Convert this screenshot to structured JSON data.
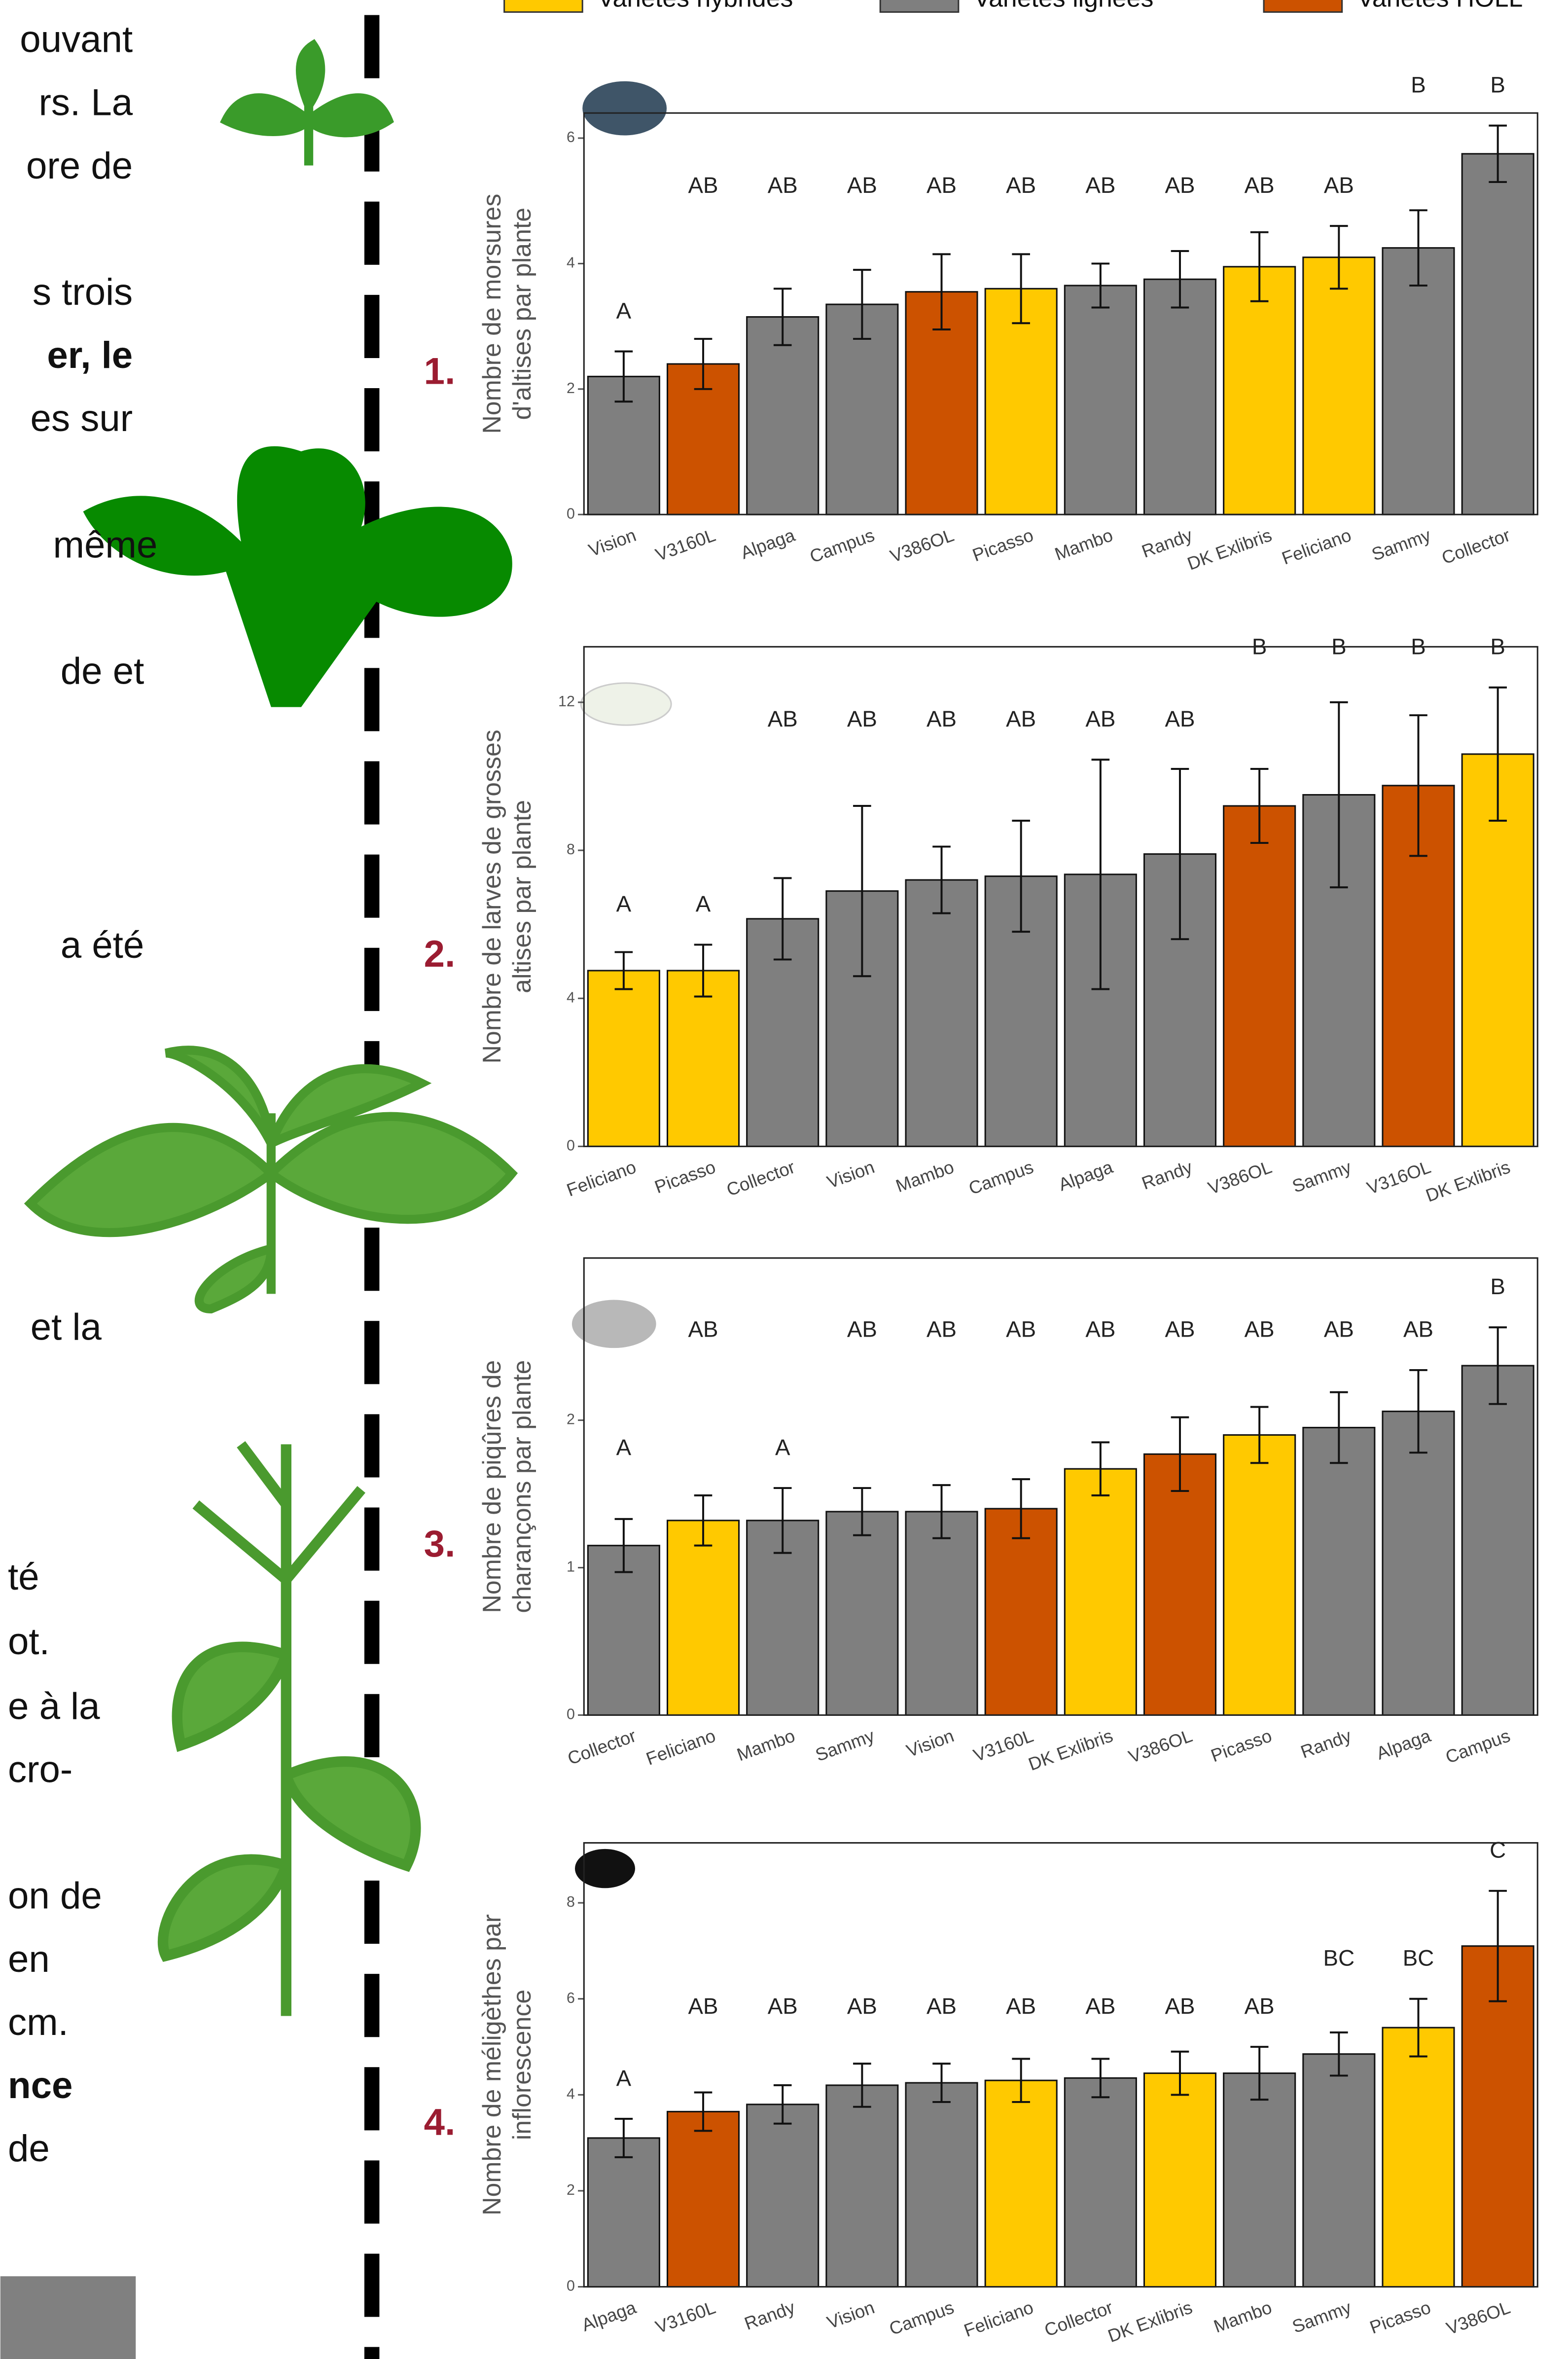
{
  "legend": [
    "Variétés hybrides",
    "Variétés lignées",
    "Variétés HOLL"
  ],
  "side_text": [
    "ouvant",
    "rs. La",
    "ore de",
    "s trois",
    "er, le",
    "es sur",
    "même",
    "de et",
    "a été",
    "et la",
    "té",
    "ot.",
    "e à la",
    "cro-",
    "on de",
    "en",
    "cm.",
    "nce",
    "de"
  ],
  "chart_data": [
    {
      "type": "bar",
      "number": "1.",
      "ylabel": [
        "Nombre de morsures",
        "d'altises par plante"
      ],
      "categories": [
        "Vision",
        "V3160L",
        "Alpaga",
        "Campus",
        "V386OL",
        "Picasso",
        "Mambo",
        "Randy",
        "DK Exlibris",
        "Feliciano",
        "Sammy",
        "Collector"
      ],
      "values": [
        2.2,
        2.4,
        3.15,
        3.35,
        3.55,
        3.6,
        3.65,
        3.75,
        3.95,
        4.1,
        4.25,
        5.75
      ],
      "errors": [
        0.4,
        0.4,
        0.45,
        0.55,
        0.6,
        0.55,
        0.35,
        0.45,
        0.55,
        0.5,
        0.6,
        0.45
      ],
      "colors": [
        "#7f7f7f",
        "#cc5200",
        "#7f7f7f",
        "#7f7f7f",
        "#cc5200",
        "#ffc900",
        "#7f7f7f",
        "#7f7f7f",
        "#ffc900",
        "#ffc900",
        "#7f7f7f",
        "#7f7f7f"
      ],
      "letters": [
        "A",
        "AB",
        "AB",
        "AB",
        "AB",
        "AB",
        "AB",
        "AB",
        "AB",
        "AB",
        "B",
        "B"
      ],
      "ylim": [
        0,
        6.4
      ],
      "yticks": [
        0,
        2,
        4,
        6
      ]
    },
    {
      "type": "bar",
      "number": "2.",
      "ylabel": [
        "Nombre de larves de grosses",
        "altises par plante"
      ],
      "categories": [
        "Feliciano",
        "Picasso",
        "Collector",
        "Vision",
        "Mambo",
        "Campus",
        "Alpaga",
        "Randy",
        "V386OL",
        "Sammy",
        "V316OL",
        "DK Exlibris"
      ],
      "values": [
        4.75,
        4.75,
        6.15,
        6.9,
        7.2,
        7.3,
        7.35,
        7.9,
        9.2,
        9.5,
        9.75,
        10.6
      ],
      "errors": [
        0.5,
        0.7,
        1.1,
        2.3,
        0.9,
        1.5,
        3.1,
        2.3,
        1.0,
        2.5,
        1.9,
        1.8
      ],
      "colors": [
        "#ffc900",
        "#ffc900",
        "#7f7f7f",
        "#7f7f7f",
        "#7f7f7f",
        "#7f7f7f",
        "#7f7f7f",
        "#7f7f7f",
        "#cc5200",
        "#7f7f7f",
        "#cc5200",
        "#ffc900"
      ],
      "letters": [
        "A",
        "A",
        "AB",
        "AB",
        "AB",
        "AB",
        "AB",
        "AB",
        "B",
        "B",
        "B",
        "B"
      ],
      "ylim": [
        0,
        13.5
      ],
      "yticks": [
        0,
        4,
        8,
        12
      ]
    },
    {
      "type": "bar",
      "number": "3.",
      "ylabel": [
        "Nombre de piqûres de",
        "charançons par plante"
      ],
      "categories": [
        "Collector",
        "Feliciano",
        "Mambo",
        "Sammy",
        "Vision",
        "V3160L",
        "DK Exlibris",
        "V386OL",
        "Picasso",
        "Randy",
        "Alpaga",
        "Campus"
      ],
      "values": [
        1.15,
        1.32,
        1.32,
        1.38,
        1.38,
        1.4,
        1.67,
        1.77,
        1.9,
        1.95,
        2.06,
        2.37
      ],
      "errors": [
        0.18,
        0.17,
        0.22,
        0.16,
        0.18,
        0.2,
        0.18,
        0.25,
        0.19,
        0.24,
        0.28,
        0.26
      ],
      "colors": [
        "#7f7f7f",
        "#ffc900",
        "#7f7f7f",
        "#7f7f7f",
        "#7f7f7f",
        "#cc5200",
        "#ffc900",
        "#cc5200",
        "#ffc900",
        "#7f7f7f",
        "#7f7f7f",
        "#7f7f7f"
      ],
      "letters": [
        "A",
        "AB",
        "A",
        "AB",
        "AB",
        "AB",
        "AB",
        "AB",
        "AB",
        "AB",
        "AB",
        "B"
      ],
      "ylim": [
        0,
        3.1
      ],
      "yticks": [
        0,
        1,
        2
      ]
    },
    {
      "type": "bar",
      "number": "4.",
      "ylabel": [
        "Nombre de méligèthes par",
        "inflorescence"
      ],
      "categories": [
        "Alpaga",
        "V3160L",
        "Randy",
        "Vision",
        "Campus",
        "Feliciano",
        "Collector",
        "DK Exlibris",
        "Mambo",
        "Sammy",
        "Picasso",
        "V386OL"
      ],
      "values": [
        3.1,
        3.65,
        3.8,
        4.2,
        4.25,
        4.3,
        4.35,
        4.45,
        4.45,
        4.85,
        5.4,
        7.1
      ],
      "errors": [
        0.4,
        0.4,
        0.4,
        0.45,
        0.4,
        0.45,
        0.4,
        0.45,
        0.55,
        0.45,
        0.6,
        1.15
      ],
      "colors": [
        "#7f7f7f",
        "#cc5200",
        "#7f7f7f",
        "#7f7f7f",
        "#7f7f7f",
        "#ffc900",
        "#7f7f7f",
        "#ffc900",
        "#7f7f7f",
        "#7f7f7f",
        "#ffc900",
        "#cc5200"
      ],
      "letters": [
        "A",
        "AB",
        "AB",
        "AB",
        "AB",
        "AB",
        "AB",
        "AB",
        "AB",
        "BC",
        "BC",
        "C"
      ],
      "ylim": [
        0,
        9.25
      ],
      "yticks": [
        0,
        2,
        4,
        6,
        8
      ]
    }
  ]
}
